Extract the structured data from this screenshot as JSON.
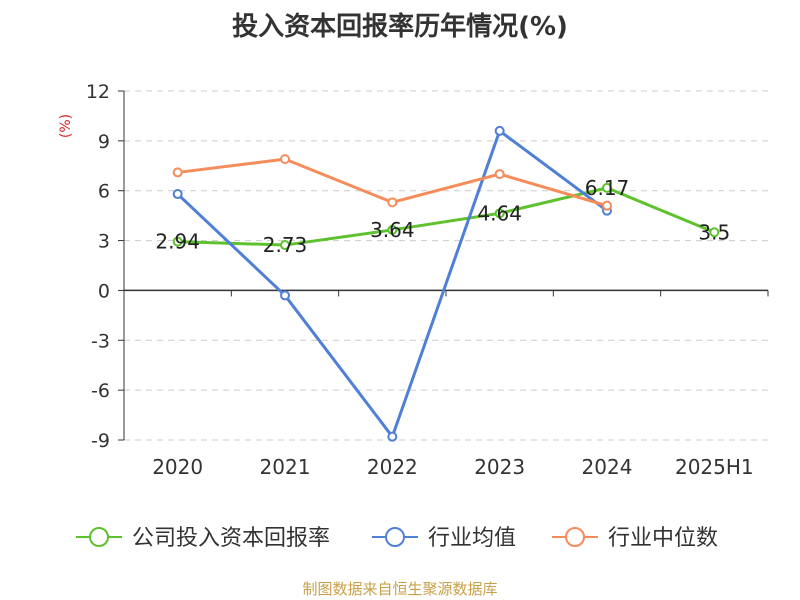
{
  "title": "投入资本回报率历年情况(%)",
  "source": "制图数据来自恒生聚源数据库",
  "chart_data": {
    "type": "line",
    "title": "投入资本回报率历年情况(%)",
    "ylabel": "(%)",
    "xlabel": "",
    "categories": [
      "2020",
      "2021",
      "2022",
      "2023",
      "2024",
      "2025H1"
    ],
    "ylim": [
      -9,
      12
    ],
    "yticks": [
      12,
      9,
      6,
      3,
      0,
      -3,
      -6,
      -9
    ],
    "grid": true,
    "legend_position": "bottom",
    "series": [
      {
        "name": "公司投入资本回报率",
        "color": "#5ec12e",
        "values": [
          2.94,
          2.73,
          3.64,
          4.64,
          6.17,
          3.5
        ],
        "labels": [
          "2.94",
          "2.73",
          "3.64",
          "4.64",
          "6.17",
          "3.5"
        ]
      },
      {
        "name": "行业均值",
        "color": "#4f7fd6",
        "values": [
          5.8,
          -0.3,
          -8.8,
          9.6,
          4.8,
          null
        ]
      },
      {
        "name": "行业中位数",
        "color": "#f58c5a",
        "values": [
          7.1,
          7.9,
          5.3,
          7.0,
          5.1,
          null
        ]
      }
    ]
  }
}
